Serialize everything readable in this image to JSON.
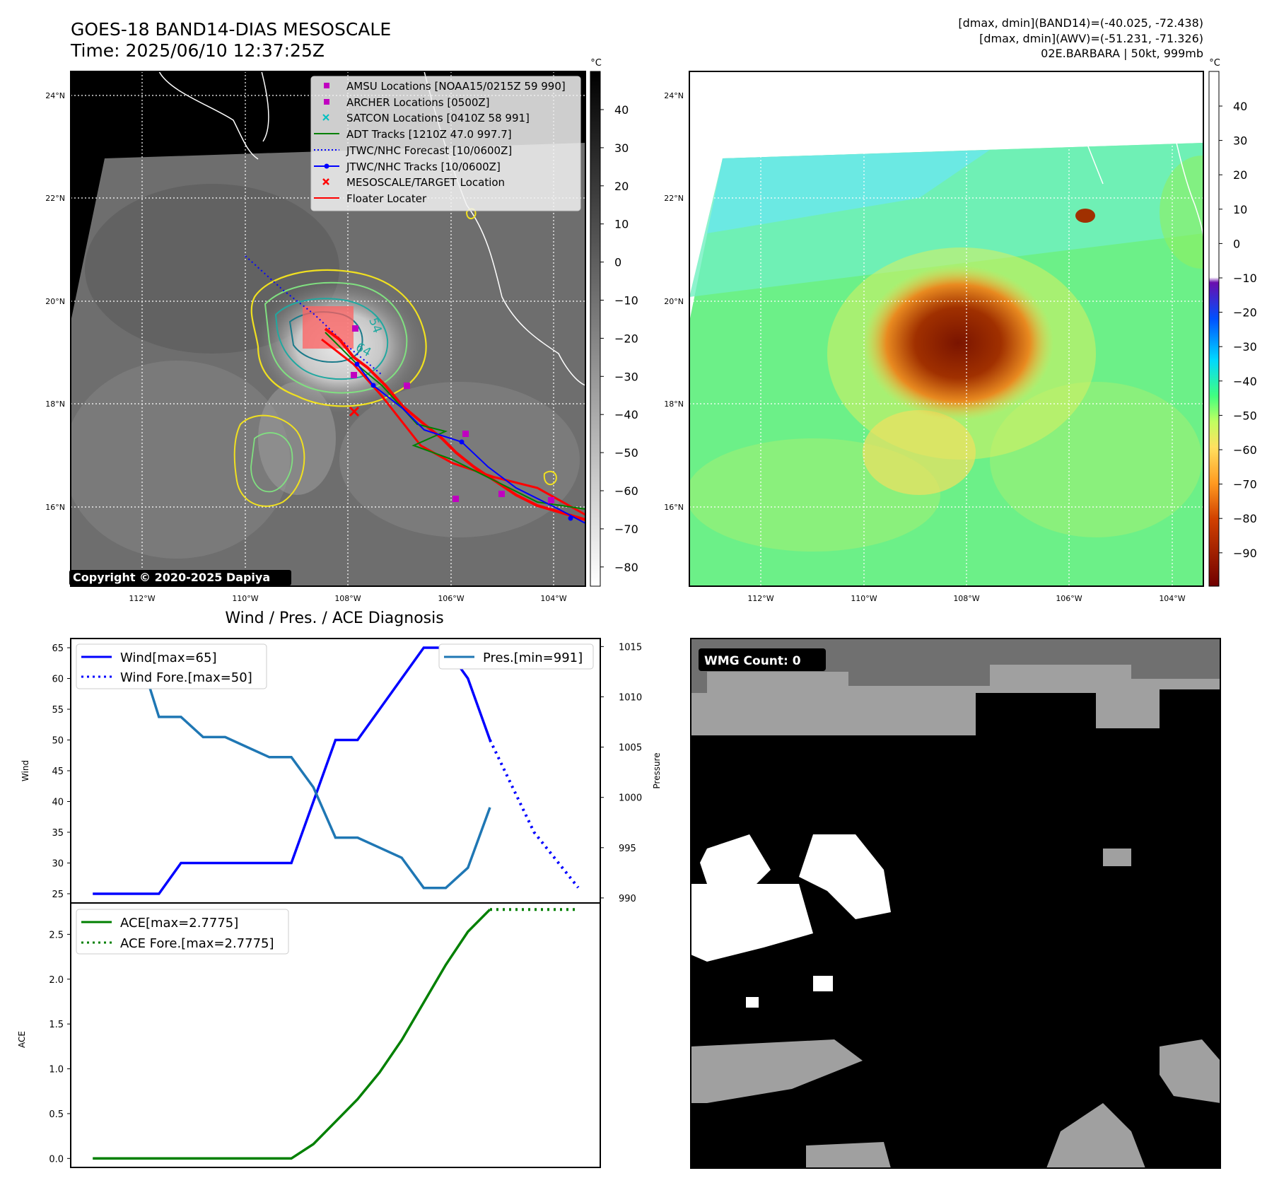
{
  "header": {
    "title_line1": "GOES-18 BAND14-DIAS MESOSCALE",
    "title_line2": "Time: 2025/06/10 12:37:25Z",
    "info_line1": "[dmax, dmin](BAND14)=(-40.025, -72.438)",
    "info_line2": "[dmax, dmin](AWV)=(-51.231, -71.326)",
    "info_line3": "02E.BARBARA | 50kt, 999mb"
  },
  "map": {
    "lat_labels": [
      "24°N",
      "22°N",
      "20°N",
      "18°N",
      "16°N"
    ],
    "lon_labels": [
      "112°W",
      "110°W",
      "108°W",
      "106°W",
      "104°W"
    ],
    "copyright": "Copyright © 2020-2025 Dapiya",
    "contour_labels": [
      "54",
      "64"
    ],
    "legend": [
      {
        "label": "AMSU Locations [NOAA15/0215Z 59 990]",
        "color": "#c000c0",
        "marker": "square"
      },
      {
        "label": "ARCHER Locations [0500Z]",
        "color": "#c000c0",
        "marker": "square"
      },
      {
        "label": "SATCON Locations [0410Z 58 991]",
        "color": "#00c0c0",
        "marker": "x"
      },
      {
        "label": "ADT Tracks [1210Z 47.0 997.7]",
        "color": "#008000",
        "marker": "line"
      },
      {
        "label": "JTWC/NHC Forecast [10/0600Z]",
        "color": "#0000ff",
        "marker": "dotted"
      },
      {
        "label": "JTWC/NHC Tracks [10/0600Z]",
        "color": "#0000ff",
        "marker": "line-dot"
      },
      {
        "label": "MESOSCALE/TARGET Location",
        "color": "#ff0000",
        "marker": "x"
      },
      {
        "label": "Floater Locater",
        "color": "#ff0000",
        "marker": "line"
      }
    ]
  },
  "colorbar_gray": {
    "unit": "°C",
    "ticks": [
      "40",
      "30",
      "20",
      "10",
      "0",
      "−10",
      "−20",
      "−30",
      "−40",
      "−50",
      "−60",
      "−70",
      "−80"
    ]
  },
  "colorbar_awv": {
    "unit": "°C",
    "ticks": [
      "40",
      "30",
      "20",
      "10",
      "0",
      "−10",
      "−20",
      "−30",
      "−40",
      "−50",
      "−60",
      "−70",
      "−80",
      "−90"
    ]
  },
  "wmg": {
    "badge": "WMG Count: 0"
  },
  "chart_data": [
    {
      "type": "line",
      "title": "Wind / Pres. / ACE Diagnosis",
      "ylabel": "Wind",
      "ylabel_right": "Pressure",
      "ylim": [
        23.5,
        66.5
      ],
      "ylim_right": [
        989.5,
        1015.8
      ],
      "yticks": [
        25,
        30,
        35,
        40,
        45,
        50,
        55,
        60,
        65
      ],
      "yticks_right": [
        990,
        995,
        1000,
        1005,
        1010,
        1015
      ],
      "x": [
        0,
        1,
        2,
        3,
        4,
        5,
        6,
        7,
        8,
        9,
        10,
        11,
        12,
        13,
        14,
        15,
        16,
        17,
        18,
        19,
        20,
        21,
        22
      ],
      "series": [
        {
          "name": "Wind[max=65]",
          "axis": "left",
          "color": "#0000ff",
          "style": "solid",
          "x": [
            0,
            1,
            2,
            3,
            4,
            5,
            6,
            7,
            8,
            9,
            10,
            11,
            12,
            13,
            14,
            15,
            16,
            17,
            18
          ],
          "values": [
            25,
            25,
            25,
            25,
            30,
            30,
            30,
            30,
            30,
            30,
            40,
            50,
            50,
            55,
            60,
            65,
            65,
            60,
            50
          ]
        },
        {
          "name": "Wind Fore.[max=50]",
          "axis": "left",
          "color": "#0000ff",
          "style": "dotted",
          "x": [
            18,
            20,
            22
          ],
          "values": [
            50,
            35,
            26
          ]
        },
        {
          "name": "Pres.[min=991]",
          "axis": "right",
          "color": "#1f77b4",
          "style": "solid",
          "x": [
            0,
            1,
            2,
            3,
            4,
            5,
            6,
            7,
            8,
            9,
            10,
            11,
            12,
            13,
            14,
            15,
            16,
            17,
            18
          ],
          "values": [
            1015,
            1015,
            1015,
            1008,
            1008,
            1006,
            1006,
            1005,
            1004,
            1004,
            1001,
            996,
            996,
            995,
            994,
            991,
            991,
            993,
            999
          ]
        }
      ]
    },
    {
      "type": "line",
      "ylabel": "ACE",
      "ylim": [
        -0.1,
        2.85
      ],
      "yticks": [
        0.0,
        0.5,
        1.0,
        1.5,
        2.0,
        2.5
      ],
      "series": [
        {
          "name": "ACE[max=2.7775]",
          "color": "#008000",
          "style": "solid",
          "x": [
            0,
            1,
            2,
            3,
            4,
            5,
            6,
            7,
            8,
            9,
            10,
            11,
            12,
            13,
            14,
            15,
            16,
            17,
            18
          ],
          "values": [
            0,
            0,
            0,
            0,
            0,
            0,
            0,
            0,
            0,
            0,
            0.16,
            0.41,
            0.66,
            0.96,
            1.32,
            1.74,
            2.16,
            2.53,
            2.7775
          ]
        },
        {
          "name": "ACE Fore.[max=2.7775]",
          "color": "#008000",
          "style": "dotted",
          "x": [
            18,
            22
          ],
          "values": [
            2.7775,
            2.7775
          ]
        }
      ]
    }
  ]
}
